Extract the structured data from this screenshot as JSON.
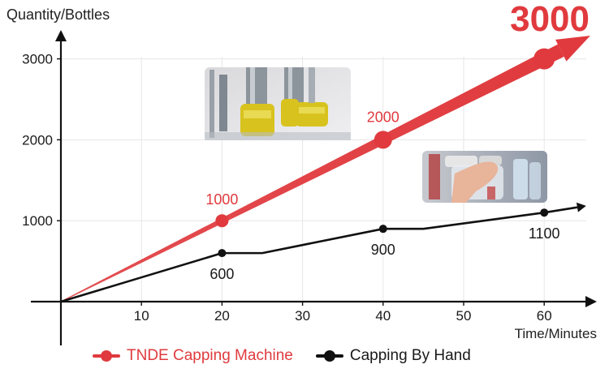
{
  "chart_data": {
    "type": "line",
    "ylabel": "Quantity/Bottles",
    "xlabel": "Time/Minutes",
    "x_ticks": [
      10,
      20,
      30,
      40,
      50,
      60
    ],
    "y_ticks": [
      1000,
      2000,
      3000
    ],
    "xlim": [
      0,
      65
    ],
    "ylim": [
      0,
      3150
    ],
    "grid": true,
    "legend_position": "bottom-left",
    "series": [
      {
        "name": "TNDE Capping Machine",
        "color": "#e03a3e",
        "x": [
          0,
          20,
          40,
          60,
          65
        ],
        "y": [
          0,
          1000,
          2000,
          3000,
          3250
        ],
        "markers": [
          {
            "x": 20,
            "y": 1000,
            "label": "1000"
          },
          {
            "x": 40,
            "y": 2000,
            "label": "2000"
          },
          {
            "x": 60,
            "y": 3000,
            "label": "3000"
          }
        ]
      },
      {
        "name": "Capping By Hand",
        "color": "#111111",
        "x": [
          0,
          20,
          25,
          40,
          45,
          60,
          65
        ],
        "y": [
          0,
          600,
          600,
          900,
          900,
          1100,
          1180
        ],
        "markers": [
          {
            "x": 20,
            "y": 600,
            "label": "600"
          },
          {
            "x": 40,
            "y": 900,
            "label": "900"
          },
          {
            "x": 60,
            "y": 1100,
            "label": "1100"
          }
        ]
      }
    ]
  },
  "legend": {
    "machine_label": "TNDE Capping Machine",
    "hand_label": "Capping By Hand"
  },
  "images": {
    "machine_photo": "capping-machine-photo",
    "hand_photo": "hand-capping-photo"
  }
}
